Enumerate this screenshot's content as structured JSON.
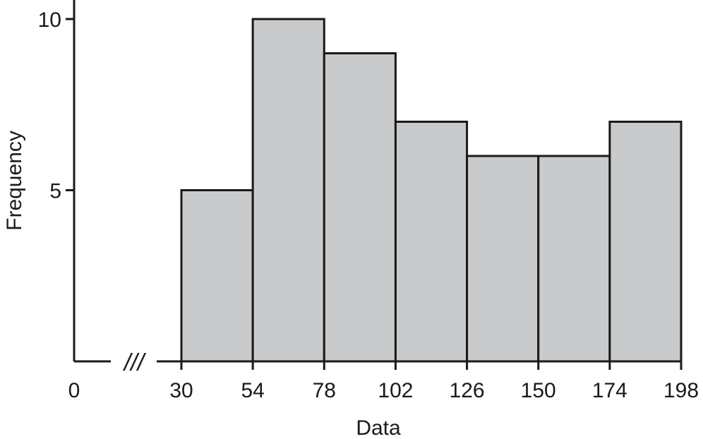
{
  "chart_data": {
    "type": "bar",
    "histogram": true,
    "bins": [
      {
        "start": 30,
        "end": 54,
        "value": 5
      },
      {
        "start": 54,
        "end": 78,
        "value": 10
      },
      {
        "start": 78,
        "end": 102,
        "value": 9
      },
      {
        "start": 102,
        "end": 126,
        "value": 7
      },
      {
        "start": 126,
        "end": 150,
        "value": 6
      },
      {
        "start": 150,
        "end": 174,
        "value": 6
      },
      {
        "start": 174,
        "end": 198,
        "value": 7
      }
    ],
    "x_ticks": [
      "0",
      "30",
      "54",
      "78",
      "102",
      "126",
      "150",
      "174",
      "198"
    ],
    "y_ticks": [
      "5",
      "10"
    ],
    "xlabel": "Data",
    "ylabel": "Frequency",
    "ylim": [
      0,
      10
    ],
    "xlim": [
      30,
      198
    ],
    "axis_break": "///",
    "grid": false,
    "bar_color": "#c9cacb",
    "edge_color": "#1a1a1a"
  }
}
